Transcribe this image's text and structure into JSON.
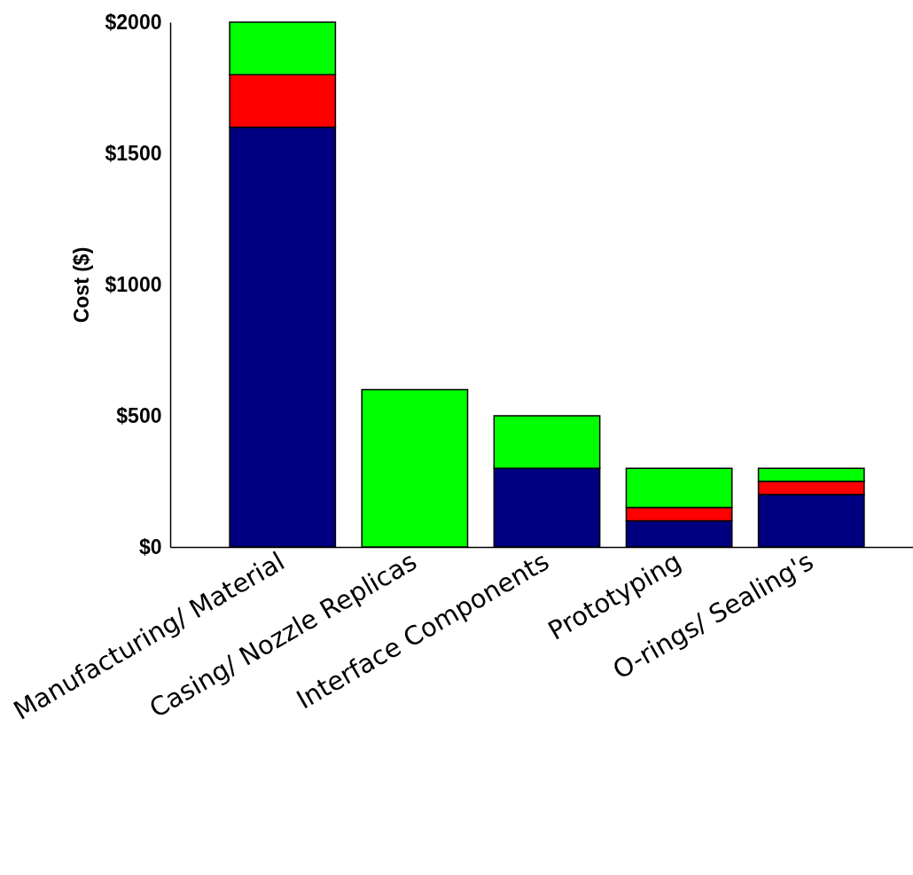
{
  "chart_data": {
    "type": "bar",
    "ylabel": "Cost ($)",
    "stacked": true,
    "grid": false,
    "legend": false,
    "categories": [
      "Manufacturing/ Material",
      "Casing/ Nozzle Replicas",
      "Interface Components",
      "Prototyping",
      "O-rings/ Sealing's"
    ],
    "ylim": [
      0,
      2000
    ],
    "yticks": [
      {
        "value": 0,
        "label": "$0"
      },
      {
        "value": 500,
        "label": "$500"
      },
      {
        "value": 1000,
        "label": "$1000"
      },
      {
        "value": 1500,
        "label": "$1500"
      },
      {
        "value": 2000,
        "label": "$2000"
      }
    ],
    "series": [
      {
        "color": "#000080",
        "values": [
          1600,
          null,
          300,
          100,
          200
        ]
      },
      {
        "color": "#ff0000",
        "values": [
          200,
          null,
          null,
          50,
          50
        ]
      },
      {
        "color": "#00ff00",
        "values": [
          200,
          600,
          200,
          150,
          50
        ]
      }
    ]
  }
}
